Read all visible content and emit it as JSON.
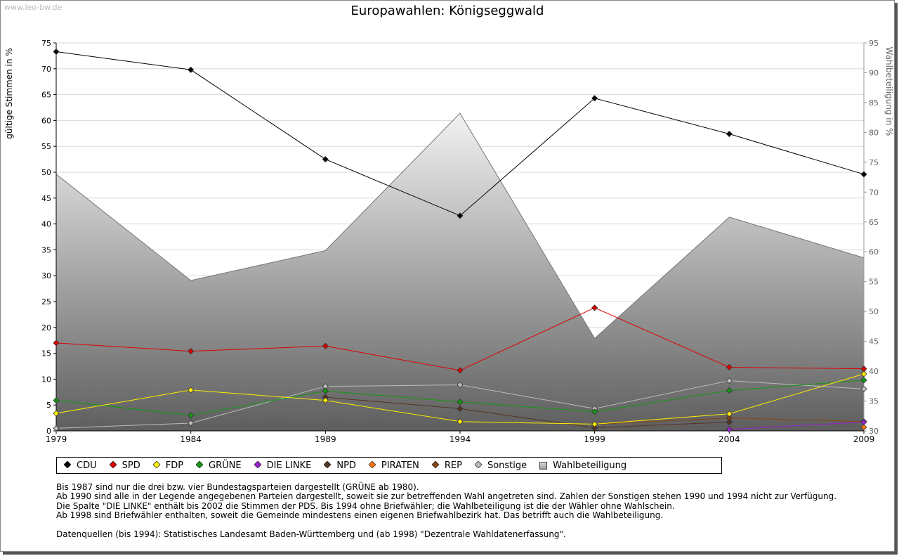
{
  "watermark": "www.leo-bw.de",
  "chart_data": {
    "type": "line",
    "title": "Europawahlen: Königseggwald",
    "ylabel": "gültige Stimmen in %",
    "y2label": "Wahlbeteiligung in %",
    "x": [
      "1979",
      "1984",
      "1989",
      "1994",
      "1999",
      "2004",
      "2009"
    ],
    "ylim": [
      0,
      75
    ],
    "y2lim": [
      30,
      95
    ],
    "yticks": [
      0,
      5,
      10,
      15,
      20,
      25,
      30,
      35,
      40,
      45,
      50,
      55,
      60,
      65,
      70,
      75
    ],
    "y2ticks": [
      30,
      35,
      40,
      45,
      50,
      55,
      60,
      65,
      70,
      75,
      80,
      85,
      90,
      95
    ],
    "grid": true,
    "area": {
      "name": "Wahlbeteiligung",
      "values": [
        73.0,
        55.2,
        60.2,
        83.2,
        45.5,
        65.8,
        59.0
      ]
    },
    "series": [
      {
        "name": "CDU",
        "color": "#000000",
        "values": [
          73.3,
          69.8,
          52.5,
          41.6,
          64.3,
          57.4,
          49.6
        ]
      },
      {
        "name": "SPD",
        "color": "#dd0000",
        "values": [
          17.0,
          15.4,
          16.4,
          11.7,
          23.8,
          12.3,
          12.0
        ]
      },
      {
        "name": "FDP",
        "color": "#ffee00",
        "values": [
          3.4,
          7.9,
          5.9,
          1.8,
          1.3,
          3.3,
          11.0
        ]
      },
      {
        "name": "GRÜNE",
        "color": "#119911",
        "values": [
          5.9,
          3.0,
          7.7,
          5.6,
          3.7,
          7.8,
          9.8
        ]
      },
      {
        "name": "DIE LINKE",
        "color": "#9922cc",
        "values": [
          null,
          null,
          null,
          null,
          null,
          0.3,
          1.7
        ]
      },
      {
        "name": "NPD",
        "color": "#553322",
        "values": [
          null,
          null,
          6.5,
          4.3,
          0.6,
          1.7,
          null
        ]
      },
      {
        "name": "PIRATEN",
        "color": "#ff7711",
        "values": [
          null,
          null,
          null,
          null,
          null,
          null,
          0.7
        ]
      },
      {
        "name": "REP",
        "color": "#884411",
        "values": [
          null,
          null,
          null,
          null,
          1.3,
          2.5,
          1.8
        ]
      },
      {
        "name": "Sonstige",
        "color": "#bbbbbb",
        "values": [
          0.5,
          1.5,
          8.6,
          8.9,
          4.3,
          9.7,
          8.1
        ]
      }
    ]
  },
  "legend": [
    {
      "label": "CDU",
      "color": "#000000",
      "shape": "diamond"
    },
    {
      "label": "SPD",
      "color": "#dd0000",
      "shape": "diamond"
    },
    {
      "label": "FDP",
      "color": "#ffee00",
      "shape": "diamond"
    },
    {
      "label": "GRÜNE",
      "color": "#119911",
      "shape": "diamond"
    },
    {
      "label": "DIE LINKE",
      "color": "#9922cc",
      "shape": "diamond"
    },
    {
      "label": "NPD",
      "color": "#553322",
      "shape": "diamond"
    },
    {
      "label": "PIRATEN",
      "color": "#ff7711",
      "shape": "diamond"
    },
    {
      "label": "REP",
      "color": "#884411",
      "shape": "diamond"
    },
    {
      "label": "Sonstige",
      "color": "#bbbbbb",
      "shape": "diamond"
    },
    {
      "label": "Wahlbeteiligung",
      "color": "#999999",
      "shape": "square"
    }
  ],
  "notes": [
    "Bis 1987 sind nur die drei bzw. vier Bundestagsparteien dargestellt (GRÜNE ab 1980).",
    "Ab 1990 sind alle in der Legende angegebenen Parteien dargestellt, soweit sie zur betreffenden Wahl angetreten sind. Zahlen der Sonstigen stehen 1990 und 1994 nicht zur Verfügung.",
    "Die Spalte \"DIE LINKE\" enthält bis 2002 die Stimmen der PDS. Bis 1994 ohne Briefwähler; die Wahlbeteiligung ist die der Wähler ohne Wahlschein.",
    "Ab 1998 sind Briefwähler enthalten, soweit die Gemeinde mindestens einen eigenen Briefwahlbezirk hat. Das betrifft auch die Wahlbeteiligung.",
    "",
    "Datenquellen (bis 1994): Statistisches Landesamt Baden-Württemberg und (ab 1998) \"Dezentrale Wahldatenerfassung\"."
  ]
}
